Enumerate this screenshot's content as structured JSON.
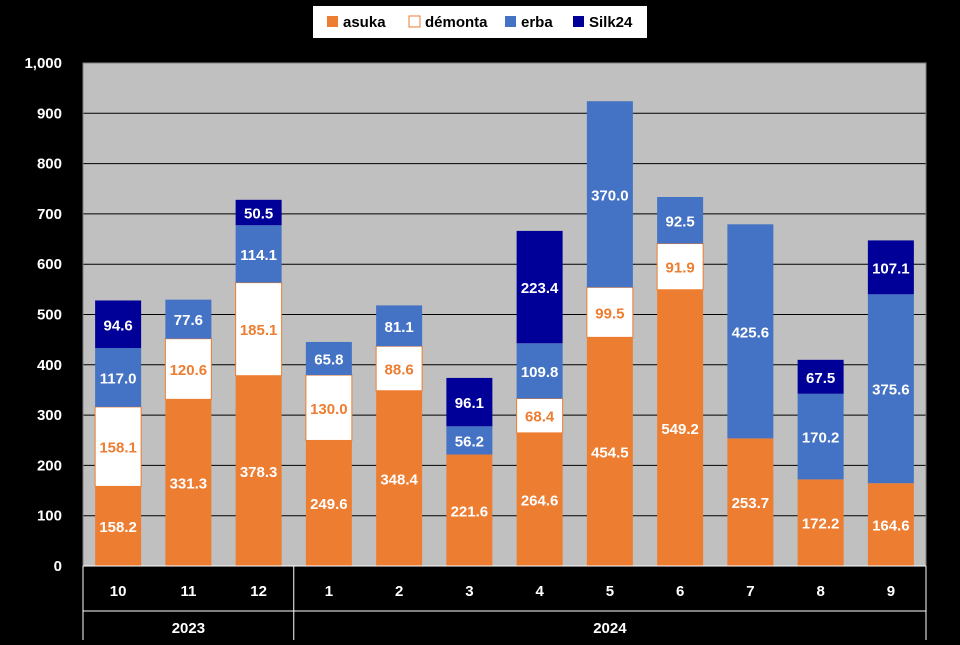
{
  "chart_data": {
    "type": "bar",
    "stacked": true,
    "categories": [
      "10",
      "11",
      "12",
      "1",
      "2",
      "3",
      "4",
      "5",
      "6",
      "7",
      "8",
      "9"
    ],
    "groups": [
      {
        "label": "2023",
        "categories": [
          "10",
          "11",
          "12"
        ]
      },
      {
        "label": "2024",
        "categories": [
          "1",
          "2",
          "3",
          "4",
          "5",
          "6",
          "7",
          "8",
          "9"
        ]
      }
    ],
    "series": [
      {
        "name": "asuka",
        "color": "#ED7D31",
        "label_color": "#FFFFFF",
        "values": [
          158.2,
          331.3,
          378.3,
          249.6,
          348.4,
          221.6,
          264.6,
          454.5,
          549.2,
          253.7,
          172.2,
          164.6
        ],
        "labels": [
          "158.2",
          "331.3",
          "378.3",
          "249.6",
          "348.4",
          "221.6",
          "264.6",
          "454.5",
          "549.2",
          "253.7",
          "172.2",
          "164.6"
        ]
      },
      {
        "name": "démonta",
        "color": "#FFFFFF",
        "label_color": "#ED7D31",
        "values": [
          158.1,
          120.6,
          185.1,
          130.0,
          88.6,
          null,
          68.4,
          99.5,
          91.9,
          null,
          null,
          null
        ],
        "labels": [
          "158.1",
          "120.6",
          "185.1",
          "130.0",
          "88.6",
          null,
          "68.4",
          "99.5",
          "91.9",
          null,
          null,
          null
        ]
      },
      {
        "name": "erba",
        "color": "#4472C4",
        "label_color": "#FFFFFF",
        "values": [
          117.0,
          77.6,
          114.1,
          65.8,
          81.1,
          56.2,
          109.8,
          370.0,
          92.5,
          425.6,
          170.2,
          375.6
        ],
        "labels": [
          "117.0",
          "77.6",
          "114.1",
          "65.8",
          "81.1",
          "56.2",
          "109.8",
          "370.0",
          "92.5",
          "425.6",
          "170.2",
          "375.6"
        ]
      },
      {
        "name": "Silk24",
        "color": "#000099",
        "label_color": "#FFFFFF",
        "values": [
          94.6,
          null,
          50.5,
          null,
          null,
          96.1,
          223.4,
          null,
          null,
          null,
          67.5,
          107.1
        ],
        "labels": [
          "94.6",
          null,
          "50.5",
          null,
          null,
          "96.1",
          "223.4",
          null,
          null,
          null,
          "67.5",
          "107.1"
        ]
      }
    ],
    "ylim": [
      0,
      1000
    ],
    "yticks": [
      0,
      100,
      200,
      300,
      400,
      500,
      600,
      700,
      800,
      900,
      1000
    ],
    "ytick_labels": [
      "0",
      "100",
      "200",
      "300",
      "400",
      "500",
      "600",
      "700",
      "800",
      "900",
      "1,000"
    ],
    "grid": true,
    "legend_position": "top-center",
    "plot_background": "#C0C0C0",
    "figure_background": "#000000",
    "title": "",
    "xlabel": "",
    "ylabel": ""
  }
}
